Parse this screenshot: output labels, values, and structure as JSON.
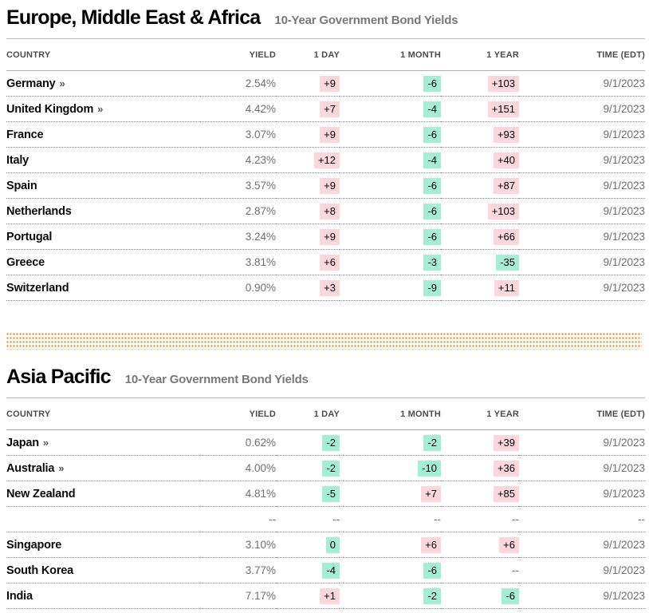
{
  "colors": {
    "positive_badge": "#fbd6da",
    "negative_badge": "#a4eed6",
    "divider_dot": "#e2932e"
  },
  "icons": {
    "link_arrow": "»"
  },
  "sections": [
    {
      "title": "Europe, Middle East & Africa",
      "subtitle": "10-Year Government Bond Yields",
      "columns": [
        "COUNTRY",
        "YIELD",
        "1 DAY",
        "1 MONTH",
        "1 YEAR",
        "TIME (EDT)"
      ],
      "rows": [
        {
          "country": "Germany",
          "link": true,
          "yield": "2.54%",
          "day": {
            "text": "+9",
            "tone": "pos"
          },
          "month": {
            "text": "-6",
            "tone": "neg"
          },
          "year": {
            "text": "+103",
            "tone": "pos"
          },
          "time": "9/1/2023"
        },
        {
          "country": "United Kingdom",
          "link": true,
          "yield": "4.42%",
          "day": {
            "text": "+7",
            "tone": "pos"
          },
          "month": {
            "text": "-4",
            "tone": "neg"
          },
          "year": {
            "text": "+151",
            "tone": "pos"
          },
          "time": "9/1/2023"
        },
        {
          "country": "France",
          "link": false,
          "yield": "3.07%",
          "day": {
            "text": "+9",
            "tone": "pos"
          },
          "month": {
            "text": "-6",
            "tone": "neg"
          },
          "year": {
            "text": "+93",
            "tone": "pos"
          },
          "time": "9/1/2023"
        },
        {
          "country": "Italy",
          "link": false,
          "yield": "4.23%",
          "day": {
            "text": "+12",
            "tone": "pos"
          },
          "month": {
            "text": "-4",
            "tone": "neg"
          },
          "year": {
            "text": "+40",
            "tone": "pos"
          },
          "time": "9/1/2023"
        },
        {
          "country": "Spain",
          "link": false,
          "yield": "3.57%",
          "day": {
            "text": "+9",
            "tone": "pos"
          },
          "month": {
            "text": "-6",
            "tone": "neg"
          },
          "year": {
            "text": "+87",
            "tone": "pos"
          },
          "time": "9/1/2023"
        },
        {
          "country": "Netherlands",
          "link": false,
          "yield": "2.87%",
          "day": {
            "text": "+8",
            "tone": "pos"
          },
          "month": {
            "text": "-6",
            "tone": "neg"
          },
          "year": {
            "text": "+103",
            "tone": "pos"
          },
          "time": "9/1/2023"
        },
        {
          "country": "Portugal",
          "link": false,
          "yield": "3.24%",
          "day": {
            "text": "+9",
            "tone": "pos"
          },
          "month": {
            "text": "-6",
            "tone": "neg"
          },
          "year": {
            "text": "+66",
            "tone": "pos"
          },
          "time": "9/1/2023"
        },
        {
          "country": "Greece",
          "link": false,
          "yield": "3.81%",
          "day": {
            "text": "+6",
            "tone": "pos"
          },
          "month": {
            "text": "-3",
            "tone": "neg"
          },
          "year": {
            "text": "-35",
            "tone": "neg"
          },
          "time": "9/1/2023"
        },
        {
          "country": "Switzerland",
          "link": false,
          "yield": "0.90%",
          "day": {
            "text": "+3",
            "tone": "pos"
          },
          "month": {
            "text": "-9",
            "tone": "neg"
          },
          "year": {
            "text": "+11",
            "tone": "pos"
          },
          "time": "9/1/2023"
        }
      ]
    },
    {
      "title": "Asia Pacific",
      "subtitle": "10-Year Government Bond Yields",
      "columns": [
        "COUNTRY",
        "YIELD",
        "1 DAY",
        "1 MONTH",
        "1 YEAR",
        "TIME (EDT)"
      ],
      "rows": [
        {
          "country": "Japan",
          "link": true,
          "yield": "0.62%",
          "day": {
            "text": "-2",
            "tone": "neg"
          },
          "month": {
            "text": "-2",
            "tone": "neg"
          },
          "year": {
            "text": "+39",
            "tone": "pos"
          },
          "time": "9/1/2023"
        },
        {
          "country": "Australia",
          "link": true,
          "yield": "4.00%",
          "day": {
            "text": "-2",
            "tone": "neg"
          },
          "month": {
            "text": "-10",
            "tone": "neg"
          },
          "year": {
            "text": "+36",
            "tone": "pos"
          },
          "time": "9/1/2023"
        },
        {
          "country": "New Zealand",
          "link": false,
          "yield": "4.81%",
          "day": {
            "text": "-5",
            "tone": "neg"
          },
          "month": {
            "text": "+7",
            "tone": "pos"
          },
          "year": {
            "text": "+85",
            "tone": "pos"
          },
          "time": "9/1/2023"
        },
        {
          "country": "",
          "link": false,
          "yield": "--",
          "day": {
            "text": "--",
            "tone": "flat"
          },
          "month": {
            "text": "--",
            "tone": "flat"
          },
          "year": {
            "text": "--",
            "tone": "flat"
          },
          "time": "--"
        },
        {
          "country": "Singapore",
          "link": false,
          "yield": "3.10%",
          "day": {
            "text": "0",
            "tone": "neg"
          },
          "month": {
            "text": "+6",
            "tone": "pos"
          },
          "year": {
            "text": "+6",
            "tone": "pos"
          },
          "time": "9/1/2023"
        },
        {
          "country": "South Korea",
          "link": false,
          "yield": "3.77%",
          "day": {
            "text": "-4",
            "tone": "neg"
          },
          "month": {
            "text": "-6",
            "tone": "neg"
          },
          "year": {
            "text": "--",
            "tone": "flat"
          },
          "time": "9/1/2023"
        },
        {
          "country": "India",
          "link": false,
          "yield": "7.17%",
          "day": {
            "text": "+1",
            "tone": "pos"
          },
          "month": {
            "text": "-2",
            "tone": "neg"
          },
          "year": {
            "text": "-6",
            "tone": "neg"
          },
          "time": "9/1/2023"
        }
      ]
    }
  ]
}
